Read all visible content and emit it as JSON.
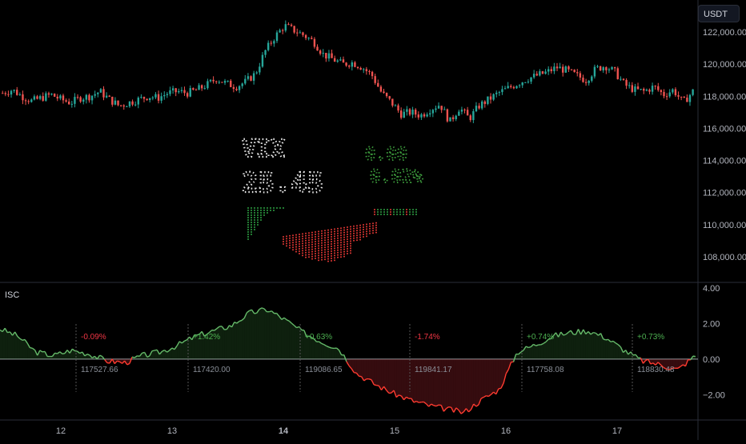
{
  "currency": "USDT",
  "indicator": {
    "name": "ISC"
  },
  "price_axis": {
    "labels": [
      "122,000.00",
      "120,000.00",
      "118,000.00",
      "116,000.00",
      "114,000.00",
      "112,000.00",
      "110,000.00",
      "108,000.00"
    ],
    "values": [
      122000,
      120000,
      118000,
      116000,
      114000,
      112000,
      110000,
      108000
    ]
  },
  "indicator_axis": {
    "labels": [
      "4.00",
      "2.00",
      "0.00",
      "−2.00"
    ],
    "values": [
      4,
      2,
      0,
      -2
    ]
  },
  "time_axis": {
    "labels": [
      "12",
      "13",
      "14",
      "15",
      "16",
      "17"
    ],
    "bold_index": 2
  },
  "dotmatrix": {
    "symbol": "VIX",
    "value": "25.45",
    "right_top": "0.00",
    "right_bottom": "0.02%"
  },
  "sessions": [
    {
      "pct": "-0.09%",
      "pct_color": "#f23645",
      "price": "117527.66"
    },
    {
      "pct": "+1.42%",
      "pct_color": "#4caf50",
      "price": "117420.00"
    },
    {
      "pct": "+0.63%",
      "pct_color": "#4caf50",
      "price": "119086.65"
    },
    {
      "pct": "-1.74%",
      "pct_color": "#f23645",
      "price": "119841.17"
    },
    {
      "pct": "+0.74%",
      "pct_color": "#4caf50",
      "price": "117758.08"
    },
    {
      "pct": "+0.73%",
      "pct_color": "#4caf50",
      "price": "118830.48"
    }
  ],
  "colors": {
    "up": "#26a69a",
    "down": "#ef5350",
    "positive_line": "#66bb6a",
    "negative_line": "#ff3b30"
  },
  "chart_data": {
    "type": "candlestick",
    "price_range": [
      106800,
      123000
    ],
    "indicator_range": [
      -3.2,
      4.0
    ],
    "close_path_prices": [
      118200,
      118400,
      118000,
      117700,
      117900,
      118100,
      117800,
      117600,
      117900,
      118000,
      118300,
      117800,
      117400,
      117600,
      117800,
      118000,
      117900,
      118200,
      118300,
      118200,
      118400,
      118700,
      119100,
      118800,
      118600,
      118900,
      119400,
      120800,
      121700,
      122400,
      122100,
      121800,
      121400,
      120600,
      120300,
      120000,
      120100,
      119800,
      119300,
      118200,
      117600,
      116900,
      117000,
      116800,
      117200,
      117500,
      116400,
      117300,
      116600,
      117400,
      117800,
      118200,
      118500,
      118800,
      119100,
      119300,
      119500,
      119800,
      119600,
      119300,
      119000,
      119700,
      119900,
      119500,
      118700,
      118400,
      118300,
      118600,
      118100,
      118400,
      117600,
      118300
    ],
    "indicator_path_values": [
      1.7,
      1.3,
      0.4,
      0.2,
      0.5,
      0.3,
      -0.1,
      -0.2,
      0.2,
      0.4,
      0.8,
      1.3,
      1.6,
      1.9,
      2.6,
      2.8,
      2.2,
      1.5,
      1.0,
      0.6,
      -0.8,
      -1.4,
      -1.9,
      -2.3,
      -2.6,
      -2.8,
      -3.0,
      -2.3,
      -1.7,
      0.4,
      0.8,
      1.3,
      1.5,
      1.6,
      1.2,
      0.5,
      -0.1,
      -0.3,
      -0.6,
      0.2
    ]
  }
}
